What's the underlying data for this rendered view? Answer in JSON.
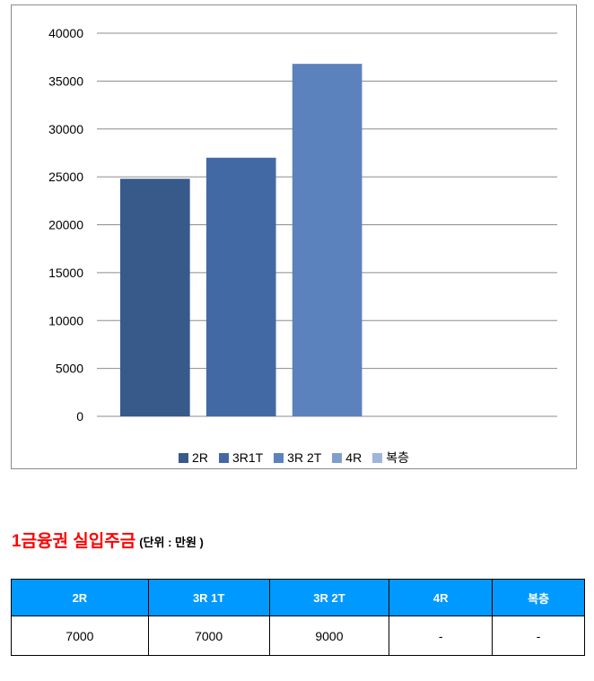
{
  "chart_data": {
    "type": "bar",
    "categories": [
      "2R",
      "3R1T",
      "3R 2T",
      "4R",
      "복층"
    ],
    "values": [
      24800,
      27000,
      36800,
      null,
      null
    ],
    "colors": [
      "#385a8a",
      "#4369a4",
      "#5b82bd",
      "#7f9ecd",
      "#9fb5da"
    ],
    "ylim": [
      0,
      40000
    ],
    "yticks": [
      "0",
      "5000",
      "10000",
      "15000",
      "20000",
      "25000",
      "30000",
      "35000",
      "40000"
    ],
    "grid": true,
    "legend_position": "bottom",
    "legend": [
      "2R",
      "3R1T",
      "3R 2T",
      "4R",
      "복층"
    ]
  },
  "section": {
    "title": "1금융권 실입주금",
    "unit": "(단위 : 만원 )"
  },
  "table": {
    "headers": [
      "2R",
      "3R 1T",
      "3R 2T",
      "4R",
      "복층"
    ],
    "rows": [
      [
        "7000",
        "7000",
        "9000",
        "-",
        "-"
      ]
    ]
  }
}
